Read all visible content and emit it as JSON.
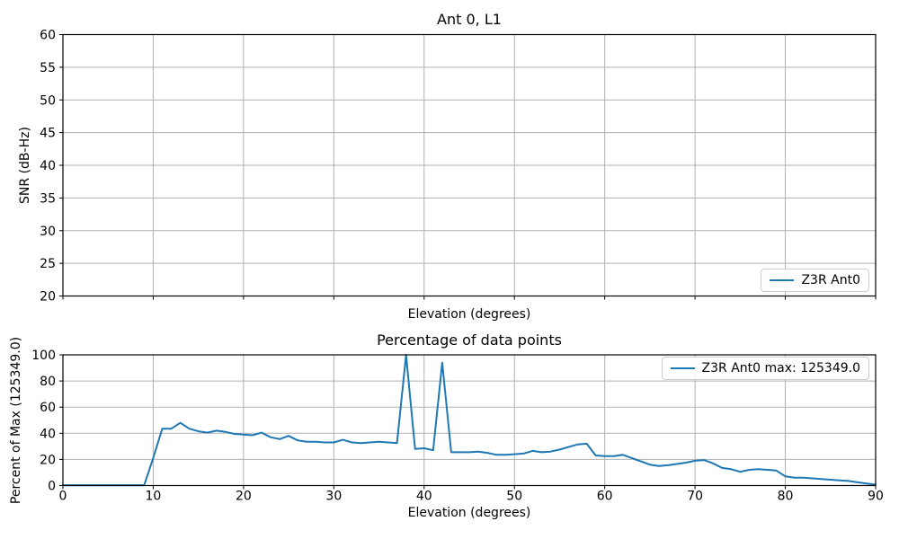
{
  "figure": {
    "background": "#ffffff",
    "grid_color": "#b0b0b0",
    "spine_color": "#000000",
    "accent_line_color": "#1f77b4"
  },
  "chart_data": [
    {
      "type": "line",
      "title": "Ant 0, L1",
      "xlabel": "Elevation (degrees)",
      "ylabel": "SNR (dB-Hz)",
      "xlim": [
        0,
        90
      ],
      "ylim": [
        20,
        60
      ],
      "xticks": [
        0,
        10,
        20,
        30,
        40,
        50,
        60,
        70,
        80,
        90
      ],
      "xtick_labels_visible": false,
      "yticks": [
        20,
        25,
        30,
        35,
        40,
        45,
        50,
        55,
        60
      ],
      "grid": true,
      "legend": {
        "label": "Z3R Ant0",
        "position": "lower-right"
      },
      "line_color": "#1f77b4",
      "series": []
    },
    {
      "type": "line",
      "title": "Percentage of data points",
      "xlabel": "Elevation (degrees)",
      "ylabel": "Percent of Max (125349.0)",
      "xlim": [
        0,
        90
      ],
      "ylim": [
        0,
        100
      ],
      "xticks": [
        0,
        10,
        20,
        30,
        40,
        50,
        60,
        70,
        80,
        90
      ],
      "xtick_labels_visible": true,
      "yticks": [
        0,
        20,
        40,
        60,
        80,
        100
      ],
      "grid": true,
      "legend": {
        "label": "Z3R Ant0 max: 125349.0",
        "position": "upper-right"
      },
      "line_color": "#1f77b4",
      "series": [
        {
          "name": "Z3R Ant0",
          "x": [
            0,
            1,
            2,
            3,
            4,
            5,
            6,
            7,
            8,
            9,
            10,
            11,
            12,
            13,
            14,
            15,
            16,
            17,
            18,
            19,
            20,
            21,
            22,
            23,
            24,
            25,
            26,
            27,
            28,
            29,
            30,
            31,
            32,
            33,
            34,
            35,
            36,
            37,
            38,
            39,
            40,
            41,
            42,
            43,
            44,
            45,
            46,
            47,
            48,
            49,
            50,
            51,
            52,
            53,
            54,
            55,
            56,
            57,
            58,
            59,
            60,
            61,
            62,
            63,
            64,
            65,
            66,
            67,
            68,
            69,
            70,
            71,
            72,
            73,
            74,
            75,
            76,
            77,
            78,
            79,
            80,
            81,
            82,
            83,
            84,
            85,
            86,
            87,
            88,
            89,
            90
          ],
          "values": [
            0.3,
            0.3,
            0.3,
            0.3,
            0.3,
            0.3,
            0.3,
            0.3,
            0.3,
            0.3,
            21,
            43.5,
            43.5,
            48,
            43.5,
            41.5,
            40.5,
            42,
            41,
            39.5,
            39,
            38.5,
            40.5,
            37,
            35.5,
            38,
            34.5,
            33.5,
            33.5,
            33,
            33,
            35,
            33,
            32.5,
            33,
            33.5,
            33,
            32.5,
            100,
            28,
            28.5,
            27,
            94,
            25.5,
            25.5,
            25.5,
            26,
            25,
            23.5,
            23.5,
            24,
            24.5,
            26.5,
            25.5,
            26,
            27.5,
            29.5,
            31.5,
            32,
            23,
            22.5,
            22.5,
            23.5,
            21,
            18.5,
            16,
            15,
            15.5,
            16.5,
            17.5,
            19,
            19.5,
            17,
            13.5,
            12.5,
            10.5,
            12,
            12.5,
            12,
            11.5,
            7,
            6,
            6,
            5.5,
            5,
            4.5,
            4,
            3.5,
            2.5,
            1.5,
            0.7
          ]
        }
      ]
    }
  ]
}
